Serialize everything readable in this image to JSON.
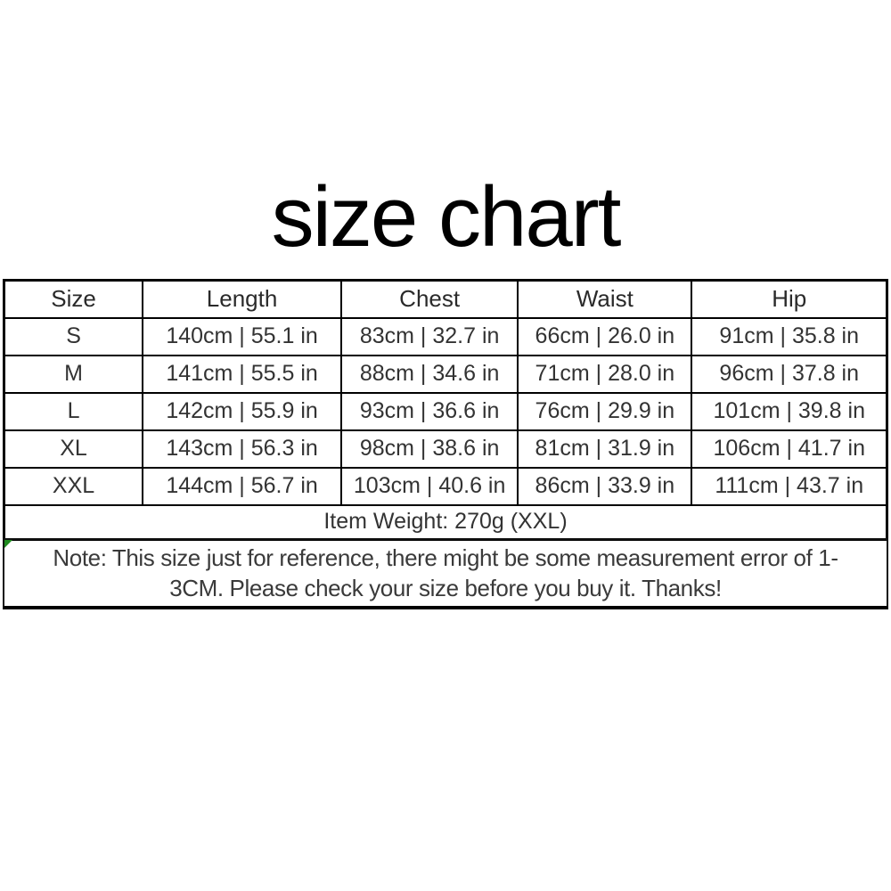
{
  "title": "size chart",
  "table": {
    "headers": [
      "Size",
      "Length",
      "Chest",
      "Waist",
      "Hip"
    ],
    "rows": [
      {
        "size": "S",
        "length": "140cm | 55.1 in",
        "chest": "83cm | 32.7 in",
        "waist": "66cm | 26.0 in",
        "hip": "91cm | 35.8 in"
      },
      {
        "size": "M",
        "length": "141cm | 55.5 in",
        "chest": "88cm | 34.6 in",
        "waist": "71cm | 28.0 in",
        "hip": "96cm | 37.8 in"
      },
      {
        "size": "L",
        "length": "142cm | 55.9 in",
        "chest": "93cm | 36.6 in",
        "waist": "76cm | 29.9 in",
        "hip": "101cm | 39.8 in"
      },
      {
        "size": "XL",
        "length": "143cm | 56.3 in",
        "chest": "98cm | 38.6 in",
        "waist": "81cm | 31.9 in",
        "hip": "106cm | 41.7 in"
      },
      {
        "size": "XXL",
        "length": "144cm | 56.7 in",
        "chest": "103cm | 40.6 in",
        "waist": "86cm | 33.9 in",
        "hip": "111cm | 43.7 in"
      }
    ],
    "item_weight": "Item Weight: 270g (XXL)"
  },
  "note": {
    "line1": "Note: This size just for reference, there might be some measurement error of 1-",
    "line2": "3CM. Please check your size before you buy it. Thanks!"
  },
  "colors": {
    "background": "#ffffff",
    "border": "#000000",
    "text": "#333333",
    "note_flag_green": "#1f8b1f"
  }
}
